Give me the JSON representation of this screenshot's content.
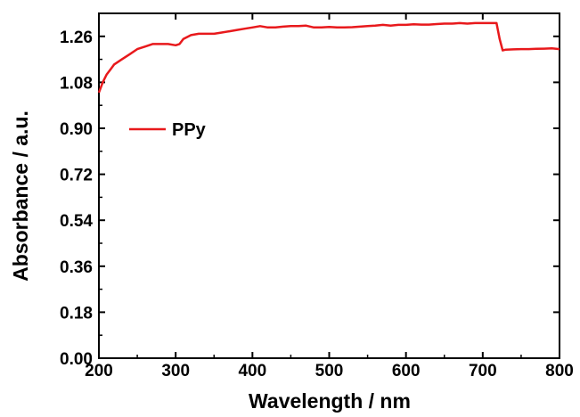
{
  "chart_data": {
    "type": "line",
    "xlabel": "Wavelength / nm",
    "ylabel": "Absorbance / a.u.",
    "xlim": [
      200,
      800
    ],
    "ylim": [
      0,
      1.35
    ],
    "xticks": [
      "200",
      "300",
      "400",
      "500",
      "600",
      "700",
      "800"
    ],
    "yticks": [
      "0.00",
      "0.18",
      "0.36",
      "0.54",
      "0.72",
      "0.90",
      "1.08",
      "1.26"
    ],
    "grid": false,
    "legend_position": "upper-left",
    "series": [
      {
        "name": "PPy",
        "color": "#e8191c",
        "x": [
          200,
          205,
          210,
          215,
          220,
          230,
          240,
          250,
          260,
          270,
          280,
          290,
          300,
          305,
          310,
          320,
          330,
          340,
          350,
          360,
          370,
          380,
          390,
          400,
          410,
          420,
          430,
          440,
          450,
          460,
          470,
          480,
          490,
          500,
          510,
          520,
          530,
          540,
          550,
          560,
          570,
          580,
          590,
          600,
          610,
          620,
          630,
          640,
          650,
          660,
          670,
          680,
          690,
          700,
          710,
          718,
          722,
          726,
          730,
          740,
          750,
          760,
          770,
          780,
          790,
          800
        ],
        "y": [
          1.04,
          1.08,
          1.11,
          1.13,
          1.15,
          1.17,
          1.19,
          1.21,
          1.22,
          1.23,
          1.23,
          1.23,
          1.225,
          1.23,
          1.25,
          1.265,
          1.27,
          1.27,
          1.27,
          1.275,
          1.28,
          1.285,
          1.29,
          1.295,
          1.3,
          1.295,
          1.295,
          1.298,
          1.3,
          1.3,
          1.302,
          1.295,
          1.295,
          1.297,
          1.295,
          1.295,
          1.296,
          1.298,
          1.3,
          1.302,
          1.305,
          1.302,
          1.305,
          1.305,
          1.307,
          1.306,
          1.306,
          1.308,
          1.31,
          1.31,
          1.312,
          1.31,
          1.312,
          1.312,
          1.312,
          1.312,
          1.25,
          1.205,
          1.208,
          1.209,
          1.21,
          1.21,
          1.211,
          1.212,
          1.213,
          1.21
        ]
      }
    ]
  }
}
